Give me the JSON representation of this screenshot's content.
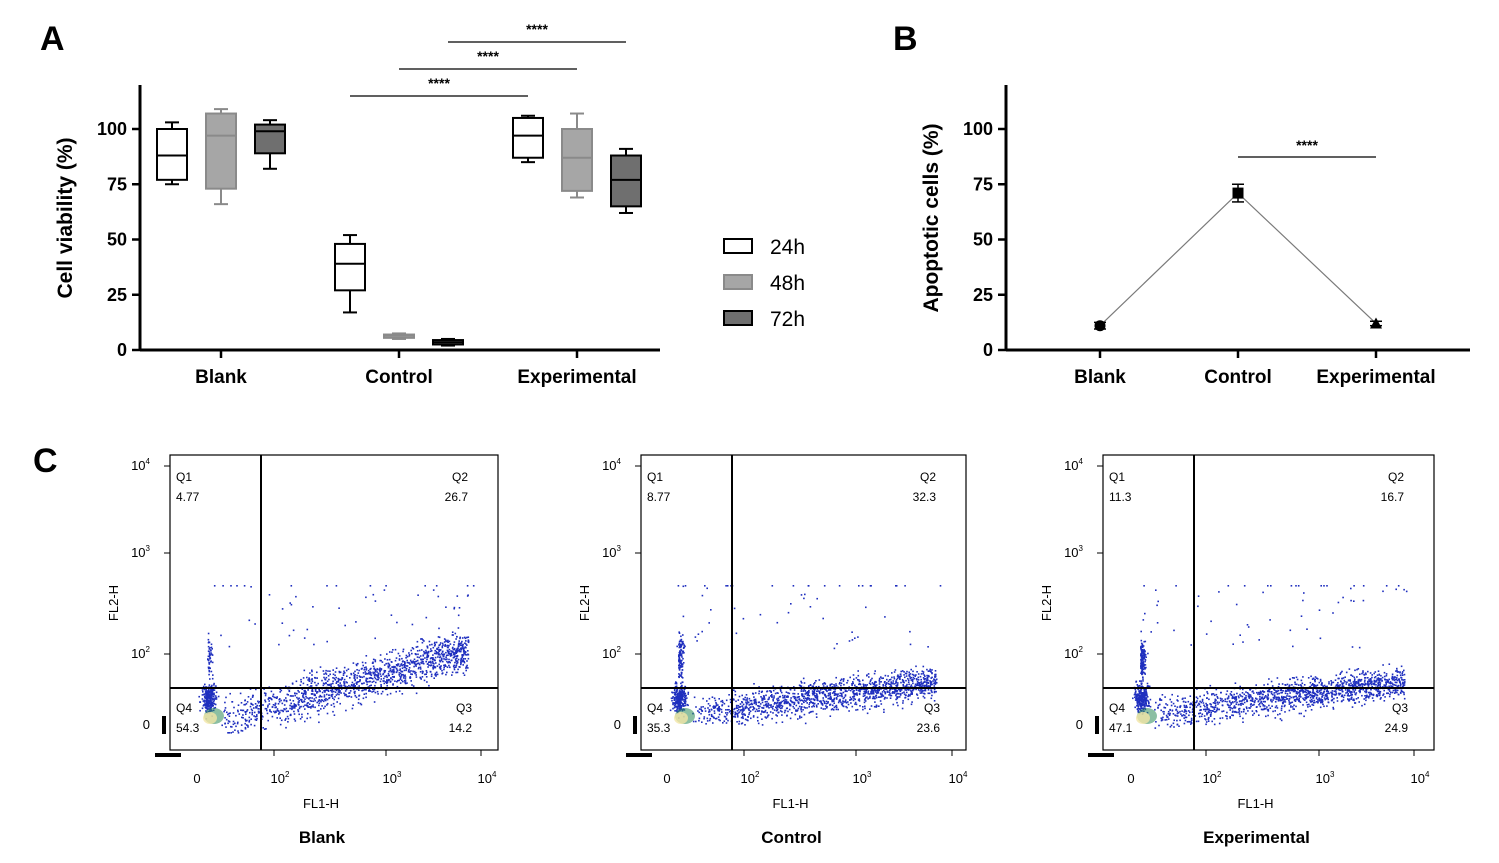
{
  "panels": {
    "a": "A",
    "b": "B",
    "c": "C"
  },
  "chart_data": [
    {
      "id": "A",
      "type": "box",
      "ylabel": "Cell viability (%)",
      "ylim": [
        0,
        120
      ],
      "yticks": [
        0,
        25,
        50,
        75,
        100
      ],
      "ytick_labels": [
        "0",
        "25",
        "50",
        "75",
        "100"
      ],
      "categories": [
        "Blank",
        "Control",
        "Experimental"
      ],
      "series": [
        {
          "name": "24h",
          "color": "#ffffff",
          "boxes": [
            {
              "min": 75,
              "q1": 77,
              "median": 88,
              "q3": 100,
              "max": 103
            },
            {
              "min": 17,
              "q1": 27,
              "median": 39,
              "q3": 48,
              "max": 52
            },
            {
              "min": 85,
              "q1": 87,
              "median": 97,
              "q3": 105,
              "max": 106
            }
          ]
        },
        {
          "name": "48h",
          "color": "#a6a6a6",
          "boxes": [
            {
              "min": 66,
              "q1": 73,
              "median": 97,
              "q3": 107,
              "max": 109
            },
            {
              "min": 5,
              "q1": 5.5,
              "median": 6.5,
              "q3": 7,
              "max": 7.5
            },
            {
              "min": 69,
              "q1": 72,
              "median": 87,
              "q3": 100,
              "max": 107
            }
          ]
        },
        {
          "name": "72h",
          "color": "#6f6f6f",
          "boxes": [
            {
              "min": 82,
              "q1": 89,
              "median": 99,
              "q3": 102,
              "max": 104
            },
            {
              "min": 2,
              "q1": 2.5,
              "median": 3.5,
              "q3": 4.5,
              "max": 5
            },
            {
              "min": 62,
              "q1": 65,
              "median": 77,
              "q3": 88,
              "max": 91
            }
          ]
        }
      ],
      "significance": [
        {
          "label": "****",
          "from": [
            1,
            0
          ],
          "to": [
            2,
            0
          ]
        },
        {
          "label": "****",
          "from": [
            1,
            1
          ],
          "to": [
            2,
            1
          ]
        },
        {
          "label": "****",
          "from": [
            1,
            2
          ],
          "to": [
            2,
            2
          ]
        }
      ]
    },
    {
      "id": "B",
      "type": "line",
      "ylabel": "Apoptotic cells (%)",
      "ylim": [
        0,
        120
      ],
      "yticks": [
        0,
        25,
        50,
        75,
        100
      ],
      "ytick_labels": [
        "0",
        "25",
        "50",
        "75",
        "100"
      ],
      "categories": [
        "Blank",
        "Control",
        "Experimental"
      ],
      "values": [
        11,
        71,
        12
      ],
      "errors": [
        1.5,
        4,
        1
      ],
      "markers": [
        "circle",
        "square",
        "triangle"
      ],
      "significance": [
        {
          "label": "****",
          "from": 1,
          "to": 2
        }
      ]
    },
    {
      "id": "C",
      "type": "scatter",
      "subtype": "flow-cytometry quadrant plots",
      "xlabel": "FL1-H",
      "ylabel": "FL2-H",
      "xticks": [
        {
          "base": "0",
          "exp": ""
        },
        {
          "base": "10",
          "exp": "2"
        },
        {
          "base": "10",
          "exp": "3"
        },
        {
          "base": "10",
          "exp": "4"
        }
      ],
      "yticks": [
        {
          "base": "0",
          "exp": ""
        },
        {
          "base": "10",
          "exp": "2"
        },
        {
          "base": "10",
          "exp": "3"
        },
        {
          "base": "10",
          "exp": "4"
        }
      ],
      "plots": [
        {
          "title": "Blank",
          "quadrants": [
            {
              "name": "Q1",
              "value": "4.77"
            },
            {
              "name": "Q2",
              "value": "26.7"
            },
            {
              "name": "Q3",
              "value": "14.2"
            },
            {
              "name": "Q4",
              "value": "54.3"
            }
          ]
        },
        {
          "title": "Control",
          "quadrants": [
            {
              "name": "Q1",
              "value": "8.77"
            },
            {
              "name": "Q2",
              "value": "32.3"
            },
            {
              "name": "Q3",
              "value": "23.6"
            },
            {
              "name": "Q4",
              "value": "35.3"
            }
          ]
        },
        {
          "title": "Experimental",
          "quadrants": [
            {
              "name": "Q1",
              "value": "11.3"
            },
            {
              "name": "Q2",
              "value": "16.7"
            },
            {
              "name": "Q3",
              "value": "24.9"
            },
            {
              "name": "Q4",
              "value": "47.1"
            }
          ]
        }
      ]
    }
  ]
}
